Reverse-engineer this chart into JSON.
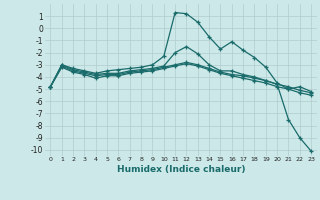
{
  "xlabel": "Humidex (Indice chaleur)",
  "background_color": "#cce8e8",
  "grid_color": "#b0cccc",
  "line_color": "#1a6b6b",
  "xlim": [
    -0.5,
    23.5
  ],
  "ylim": [
    -10.5,
    2.0
  ],
  "xticks": [
    0,
    1,
    2,
    3,
    4,
    5,
    6,
    7,
    8,
    9,
    10,
    11,
    12,
    13,
    14,
    15,
    16,
    17,
    18,
    19,
    20,
    21,
    22,
    23
  ],
  "yticks": [
    1,
    0,
    -1,
    -2,
    -3,
    -4,
    -5,
    -6,
    -7,
    -8,
    -9,
    -10
  ],
  "line1_x": [
    0,
    1,
    2,
    3,
    4,
    5,
    6,
    7,
    8,
    9,
    10,
    11,
    12,
    13,
    14,
    15,
    16,
    17,
    18,
    19,
    20,
    21,
    22,
    23
  ],
  "line1_y": [
    -4.8,
    -3.0,
    -3.3,
    -3.5,
    -3.7,
    -3.5,
    -3.4,
    -3.3,
    -3.2,
    -3.0,
    -2.3,
    1.3,
    1.2,
    0.5,
    -0.7,
    -1.7,
    -1.1,
    -1.8,
    -2.4,
    -3.2,
    -4.5,
    -5.0,
    -4.8,
    -5.2
  ],
  "line2_x": [
    0,
    1,
    2,
    3,
    4,
    5,
    6,
    7,
    8,
    9,
    10,
    11,
    12,
    13,
    14,
    15,
    16,
    17,
    18,
    19,
    20,
    21,
    22,
    23
  ],
  "line2_y": [
    -4.8,
    -3.2,
    -3.6,
    -3.8,
    -4.1,
    -3.9,
    -3.9,
    -3.7,
    -3.6,
    -3.5,
    -3.3,
    -3.1,
    -2.9,
    -3.1,
    -3.4,
    -3.7,
    -3.9,
    -4.1,
    -4.3,
    -4.5,
    -4.8,
    -5.0,
    -5.3,
    -5.5
  ],
  "line3_x": [
    0,
    1,
    2,
    3,
    4,
    5,
    6,
    7,
    8,
    9,
    10,
    11,
    12,
    13,
    14,
    15,
    16,
    17,
    18,
    19,
    20,
    21,
    22,
    23
  ],
  "line3_y": [
    -4.8,
    -3.1,
    -3.5,
    -3.7,
    -3.9,
    -3.8,
    -3.8,
    -3.6,
    -3.5,
    -3.4,
    -3.2,
    -3.0,
    -2.8,
    -3.0,
    -3.3,
    -3.6,
    -3.8,
    -3.9,
    -4.1,
    -4.3,
    -4.6,
    -4.8,
    -5.1,
    -5.3
  ],
  "line4_x": [
    0,
    1,
    2,
    3,
    4,
    5,
    6,
    7,
    8,
    9,
    10,
    11,
    12,
    13,
    14,
    15,
    16,
    17,
    18,
    19,
    20,
    21,
    22,
    23
  ],
  "line4_y": [
    -4.8,
    -3.0,
    -3.4,
    -3.6,
    -3.8,
    -3.7,
    -3.7,
    -3.5,
    -3.4,
    -3.3,
    -3.1,
    -2.0,
    -1.5,
    -2.1,
    -3.0,
    -3.5,
    -3.5,
    -3.8,
    -4.0,
    -4.3,
    -4.6,
    -7.5,
    -9.0,
    -10.1
  ]
}
